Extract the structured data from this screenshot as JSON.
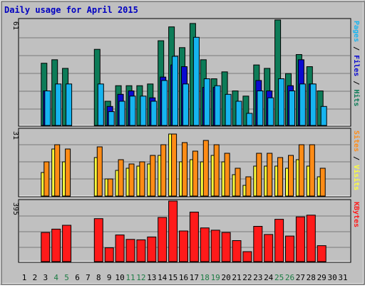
{
  "colors": {
    "background": "#c0c0c0",
    "plot_background": "#c0c0c0",
    "border_dark": "#404040",
    "border_light": "#ffffff",
    "hits": "#0d7c58",
    "files": "#0a0ad0",
    "pages": "#16b4f0",
    "visits": "#ffff3a",
    "sites": "#ff8c16",
    "kbytes": "#ff1a1a",
    "title": "#0000c0",
    "weekend_day": "#1c7c44",
    "weekday": "#000000"
  },
  "chart_data": [
    {
      "type": "bar",
      "title": "Daily usage for April 2015",
      "panel": "hits-files-pages",
      "ymax_label": "61",
      "ylim": [
        0,
        61
      ],
      "legend": [
        "Pages",
        "Files",
        "Hits"
      ],
      "legend_colors": [
        "#16b4f0",
        "#0a0ad0",
        "#0d7c58"
      ],
      "x": [
        1,
        2,
        3,
        4,
        5,
        6,
        7,
        8,
        9,
        10,
        11,
        12,
        13,
        14,
        15,
        16,
        17,
        18,
        19,
        20,
        21,
        22,
        23,
        24,
        25,
        26,
        27,
        28,
        29,
        30,
        31
      ],
      "series": [
        {
          "name": "Hits",
          "values": [
            0,
            0,
            36,
            38,
            33,
            0,
            0,
            44,
            14,
            23,
            23,
            23,
            24,
            49,
            57,
            45,
            59,
            38,
            27,
            31,
            20,
            17,
            35,
            33,
            61,
            30,
            41,
            34,
            20,
            0,
            0
          ]
        },
        {
          "name": "Files",
          "values": [
            0,
            0,
            20,
            0,
            0,
            0,
            0,
            0,
            11,
            18,
            20,
            0,
            16,
            28,
            35,
            34,
            0,
            22,
            22,
            0,
            0,
            0,
            26,
            20,
            0,
            23,
            38,
            24,
            0,
            0,
            0
          ]
        },
        {
          "name": "Pages",
          "values": [
            0,
            0,
            20,
            24,
            24,
            0,
            0,
            24,
            8,
            14,
            17,
            17,
            14,
            26,
            40,
            24,
            51,
            27,
            23,
            18,
            14,
            7,
            20,
            16,
            27,
            20,
            24,
            24,
            11,
            0,
            0
          ]
        }
      ]
    },
    {
      "type": "bar",
      "panel": "visits-sites",
      "ymax_label": "31",
      "ylim": [
        0,
        31
      ],
      "legend": [
        "Sites",
        "Visits"
      ],
      "legend_colors": [
        "#ff8c16",
        "#ffff3a"
      ],
      "x": [
        1,
        2,
        3,
        4,
        5,
        6,
        7,
        8,
        9,
        10,
        11,
        12,
        13,
        14,
        15,
        16,
        17,
        18,
        19,
        20,
        21,
        22,
        23,
        24,
        25,
        26,
        27,
        28,
        29,
        30,
        31
      ],
      "series": [
        {
          "name": "Visits",
          "values": [
            0,
            0,
            11,
            22,
            16,
            0,
            0,
            18,
            8,
            12,
            13,
            14,
            15,
            19,
            29,
            16,
            17,
            16,
            19,
            16,
            10,
            5,
            14,
            14,
            14,
            13,
            17,
            14,
            9,
            0,
            0
          ]
        },
        {
          "name": "Sites",
          "values": [
            0,
            0,
            16,
            24,
            22,
            0,
            0,
            23,
            8,
            17,
            15,
            16,
            19,
            24,
            29,
            25,
            21,
            26,
            24,
            20,
            13,
            9,
            20,
            20,
            18,
            19,
            24,
            24,
            13,
            0,
            0
          ]
        }
      ]
    },
    {
      "type": "bar",
      "panel": "kbytes",
      "ymax_label": "395",
      "ylim": [
        0,
        395
      ],
      "legend": [
        "KBytes"
      ],
      "legend_colors": [
        "#ff1a1a"
      ],
      "x": [
        1,
        2,
        3,
        4,
        5,
        6,
        7,
        8,
        9,
        10,
        11,
        12,
        13,
        14,
        15,
        16,
        17,
        18,
        19,
        20,
        21,
        22,
        23,
        24,
        25,
        26,
        27,
        28,
        29,
        30,
        31
      ],
      "series": [
        {
          "name": "KBytes",
          "values": [
            0,
            0,
            190,
            212,
            237,
            0,
            0,
            280,
            90,
            174,
            145,
            142,
            161,
            288,
            395,
            200,
            323,
            220,
            205,
            190,
            137,
            65,
            230,
            177,
            276,
            167,
            292,
            303,
            104,
            0,
            0
          ]
        }
      ]
    }
  ],
  "x_labels": [
    "1",
    "2",
    "3",
    "4",
    "5",
    "6",
    "7",
    "8",
    "9",
    "10",
    "11",
    "12",
    "13",
    "14",
    "15",
    "16",
    "17",
    "18",
    "19",
    "20",
    "21",
    "22",
    "23",
    "24",
    "25",
    "26",
    "27",
    "28",
    "29",
    "30",
    "31"
  ],
  "weekend_days": [
    4,
    5,
    11,
    12,
    18,
    19,
    25,
    26
  ]
}
